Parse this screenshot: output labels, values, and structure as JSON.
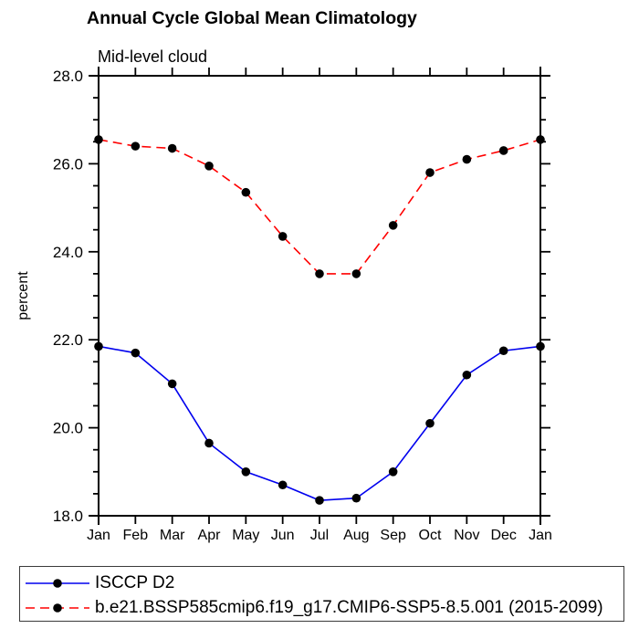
{
  "chart_data": {
    "type": "line",
    "title": "Annual Cycle Global Mean Climatology",
    "subtitle": "Mid-level cloud",
    "xlabel": "",
    "ylabel": "percent",
    "categories": [
      "Jan",
      "Feb",
      "Mar",
      "Apr",
      "May",
      "Jun",
      "Jul",
      "Aug",
      "Sep",
      "Oct",
      "Nov",
      "Dec",
      "Jan"
    ],
    "ylim": [
      18.0,
      28.0
    ],
    "ytick_major": [
      28.0,
      26.0,
      24.0,
      22.0,
      20.0,
      18.0
    ],
    "ytick_labels": [
      "28.0",
      "26.0",
      "24.0",
      "22.0",
      "20.0",
      "18.0"
    ],
    "ytick_minor_step": 0.5,
    "grid": false,
    "legend_position": "bottom",
    "axis_color": "#000000",
    "series": [
      {
        "name": "ISCCP D2",
        "color": "#0000EE",
        "line_style": "solid",
        "marker": "filled-circle",
        "marker_color": "#000000",
        "values": [
          21.85,
          21.7,
          21.0,
          19.65,
          19.0,
          18.7,
          18.35,
          18.4,
          19.0,
          20.1,
          21.2,
          21.75,
          21.85
        ]
      },
      {
        "name": "b.e21.BSSP585cmip6.f19_g17.CMIP6-SSP5-8.5.001 (2015-2099)",
        "color": "#FF0000",
        "line_style": "dashed",
        "marker": "filled-circle",
        "marker_color": "#000000",
        "values": [
          26.55,
          26.4,
          26.35,
          25.95,
          25.35,
          24.35,
          23.5,
          23.5,
          24.6,
          25.8,
          26.1,
          26.3,
          26.55
        ]
      }
    ]
  }
}
